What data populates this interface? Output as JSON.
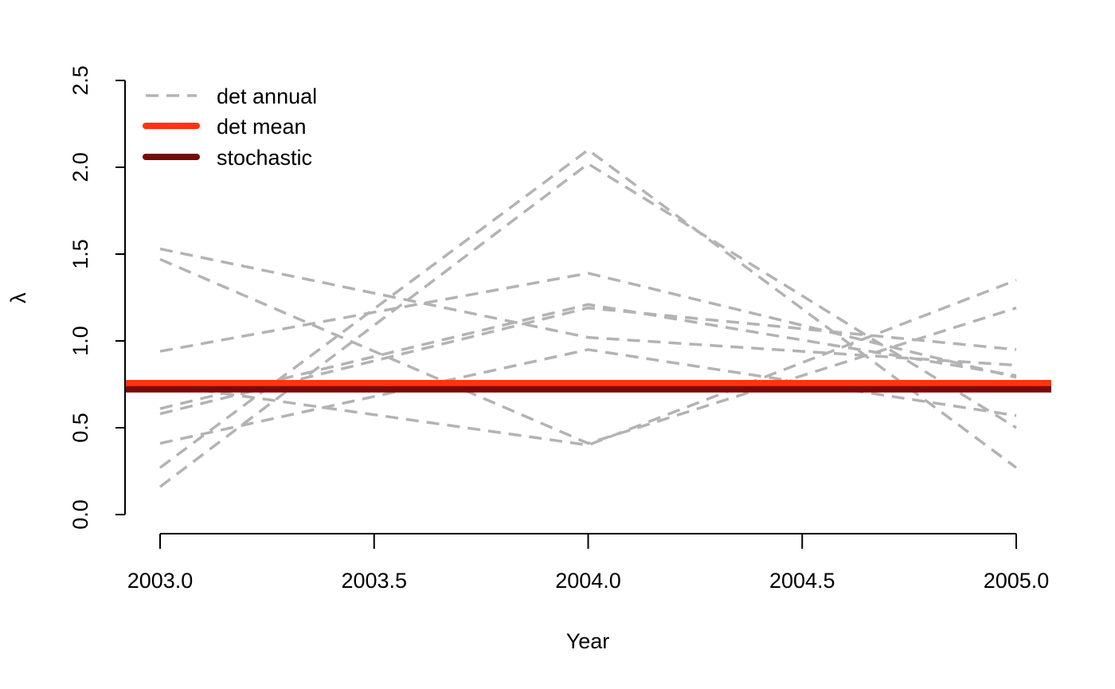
{
  "chart_data": {
    "type": "line",
    "title": "",
    "xlabel": "Year",
    "ylabel": "λ",
    "xlim": [
      2003.0,
      2005.0
    ],
    "ylim": [
      0.0,
      2.5
    ],
    "x_ticks": [
      "2003.0",
      "2003.5",
      "2004.0",
      "2004.5",
      "2005.0"
    ],
    "y_ticks": [
      "0.0",
      "0.5",
      "1.0",
      "1.5",
      "2.0",
      "2.5"
    ],
    "grid": false,
    "legend_position": "top-left",
    "colors": {
      "det_annual": "#b3b3b3",
      "det_mean": "#ff3311",
      "stochastic": "#7a0a0a"
    },
    "legend": [
      {
        "label": "det annual",
        "style": "dashed",
        "color": "#b3b3b3"
      },
      {
        "label": "det mean",
        "style": "solid",
        "color": "#ff3311"
      },
      {
        "label": "stochastic",
        "style": "solid",
        "color": "#7a0a0a"
      }
    ],
    "x": [
      2003.0,
      2004.0,
      2005.0
    ],
    "annual_series": [
      [
        0.16,
        2.02,
        0.5
      ],
      [
        0.27,
        2.1,
        0.27
      ],
      [
        1.53,
        1.02,
        0.86
      ],
      [
        1.47,
        0.41,
        1.19
      ],
      [
        0.94,
        1.39,
        0.79
      ],
      [
        0.58,
        1.19,
        0.95
      ],
      [
        0.41,
        0.95,
        0.57
      ],
      [
        0.61,
        1.21,
        0.8
      ],
      [
        0.75,
        0.4,
        1.35
      ]
    ],
    "det_mean_value": 0.75,
    "stochastic_value": 0.735
  }
}
